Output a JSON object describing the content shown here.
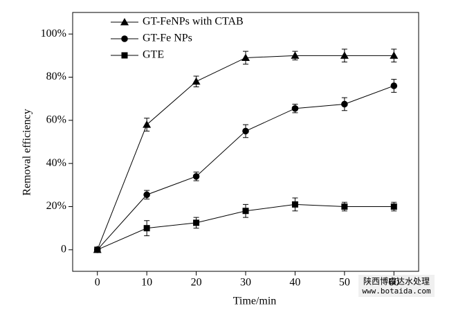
{
  "chart_data": {
    "type": "line",
    "xlabel": "Time/min",
    "ylabel": "Removal efficiency",
    "x": [
      0,
      10,
      20,
      30,
      40,
      50,
      60
    ],
    "series": [
      {
        "name": "GT-FeNPs with CTAB",
        "color": "#000000",
        "marker": "triangle",
        "values": [
          0,
          58,
          78,
          89,
          90,
          90,
          90
        ],
        "errors": [
          null,
          3,
          2.5,
          3,
          2,
          3,
          3
        ]
      },
      {
        "name": "GT-Fe NPs",
        "color": "#000000",
        "marker": "circle",
        "values": [
          0,
          25.5,
          34,
          55,
          65.5,
          67.5,
          76
        ],
        "errors": [
          null,
          2,
          2,
          3,
          2,
          3,
          3
        ]
      },
      {
        "name": "GTE",
        "color": "#000000",
        "marker": "square",
        "values": [
          0,
          10,
          12.5,
          18,
          21,
          20,
          20
        ],
        "errors": [
          null,
          3.5,
          2.5,
          3,
          3,
          2,
          2
        ]
      }
    ],
    "xlim": [
      -5,
      65
    ],
    "xticks": [
      0,
      10,
      20,
      30,
      40,
      50,
      60
    ],
    "ylim": [
      -10,
      110
    ],
    "yticks": [
      {
        "value": 0,
        "label": "0"
      },
      {
        "value": 20,
        "label": "20%"
      },
      {
        "value": 40,
        "label": "40%"
      },
      {
        "value": 60,
        "label": "60%"
      },
      {
        "value": 80,
        "label": "80%"
      },
      {
        "value": 100,
        "label": "100%"
      }
    ],
    "legend": "upper left",
    "watermark": {
      "line1": "陕西博睿达水处理",
      "line2": "www.botaida.com"
    }
  }
}
